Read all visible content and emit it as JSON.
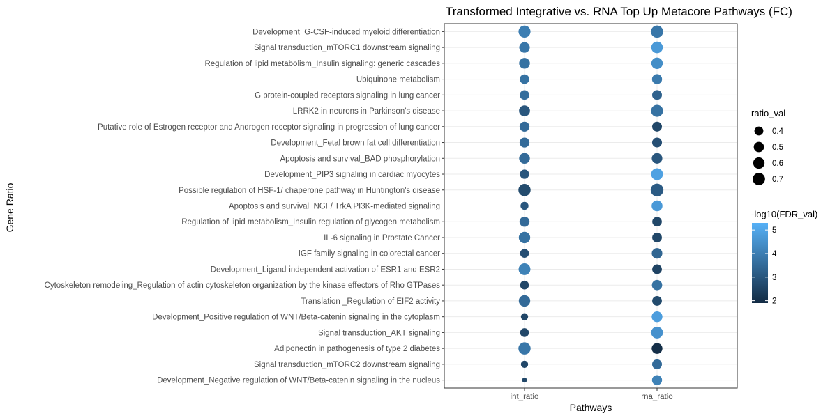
{
  "chart_data": {
    "type": "scatter",
    "title": "Transformed Integrative vs. RNA Top Up Metacore Pathways (FC)",
    "xlabel": "Pathways",
    "ylabel": "Gene Ratio",
    "x_categories": [
      "int_ratio",
      "rna_ratio"
    ],
    "y_categories": [
      "Development_G-CSF-induced myeloid differentiation",
      "Signal transduction_mTORC1 downstream signaling",
      "Regulation of lipid metabolism_Insulin signaling: generic cascades",
      "Ubiquinone metabolism",
      "G protein-coupled receptors signaling in lung cancer",
      "LRRK2 in neurons in Parkinson's disease",
      "Putative role of Estrogen receptor and Androgen receptor signaling in progression of lung cancer",
      "Development_Fetal brown fat cell differentiation",
      "Apoptosis and survival_BAD phosphorylation",
      "Development_PIP3 signaling in cardiac myocytes",
      "Possible regulation of HSF-1/ chaperone pathway in Huntington's disease",
      "Apoptosis and survival_NGF/ TrkA PI3K-mediated signaling",
      "Regulation of lipid metabolism_Insulin regulation of glycogen metabolism",
      "IL-6 signaling in Prostate Cancer",
      "IGF family signaling in colorectal cancer",
      "Development_Ligand-independent activation of ESR1 and ESR2",
      "Cytoskeleton remodeling_Regulation of actin cytoskeleton organization by the kinase effectors of Rho GTPases",
      "Translation _Regulation of EIF2 activity",
      "Development_Positive regulation of WNT/Beta-catenin signaling in the cytoplasm",
      "Signal transduction_AKT signaling",
      "Adiponectin in pathogenesis of type 2 diabetes",
      "Signal transduction_mTORC2 downstream signaling",
      "Development_Negative regulation of WNT/Beta-catenin signaling in the nucleus"
    ],
    "series": [
      {
        "x": "int_ratio",
        "ratio_val": [
          0.66,
          0.52,
          0.54,
          0.44,
          0.44,
          0.56,
          0.47,
          0.47,
          0.54,
          0.42,
          0.68,
          0.34,
          0.48,
          0.6,
          0.39,
          0.64,
          0.39,
          0.6,
          0.3,
          0.39,
          0.68,
          0.3,
          0.22
        ],
        "log10_fdr": [
          4.0,
          3.8,
          3.7,
          3.7,
          3.6,
          3.0,
          3.5,
          3.5,
          3.5,
          3.0,
          2.7,
          3.0,
          3.5,
          3.7,
          2.8,
          4.1,
          2.6,
          3.5,
          2.6,
          2.6,
          3.8,
          2.6,
          2.6
        ]
      },
      {
        "x": "rna_ratio",
        "ratio_val": [
          0.68,
          0.62,
          0.6,
          0.48,
          0.46,
          0.66,
          0.46,
          0.46,
          0.52,
          0.64,
          0.74,
          0.55,
          0.44,
          0.45,
          0.52,
          0.45,
          0.5,
          0.45,
          0.54,
          0.64,
          0.54,
          0.46,
          0.48
        ],
        "log10_fdr": [
          3.8,
          4.7,
          4.4,
          3.9,
          3.3,
          3.7,
          2.6,
          2.8,
          3.0,
          4.9,
          3.1,
          4.7,
          2.6,
          2.6,
          3.4,
          2.5,
          3.7,
          2.7,
          4.8,
          4.5,
          2.0,
          3.5,
          4.1
        ]
      }
    ],
    "legend": {
      "size_title": "ratio_val",
      "size_values": [
        0.4,
        0.5,
        0.6,
        0.7
      ],
      "size_labels": [
        "0.4",
        "0.5",
        "0.6",
        "0.7"
      ],
      "color_title": "-log10(FDR_val)",
      "color_ticks": [
        2,
        3,
        4,
        5
      ],
      "color_tick_labels": [
        "2",
        "3",
        "4",
        "5"
      ],
      "color_range": [
        1.9,
        5.3
      ],
      "color_low": "#132B43",
      "color_high": "#56B1F7",
      "placement": "right"
    },
    "grid": true
  }
}
